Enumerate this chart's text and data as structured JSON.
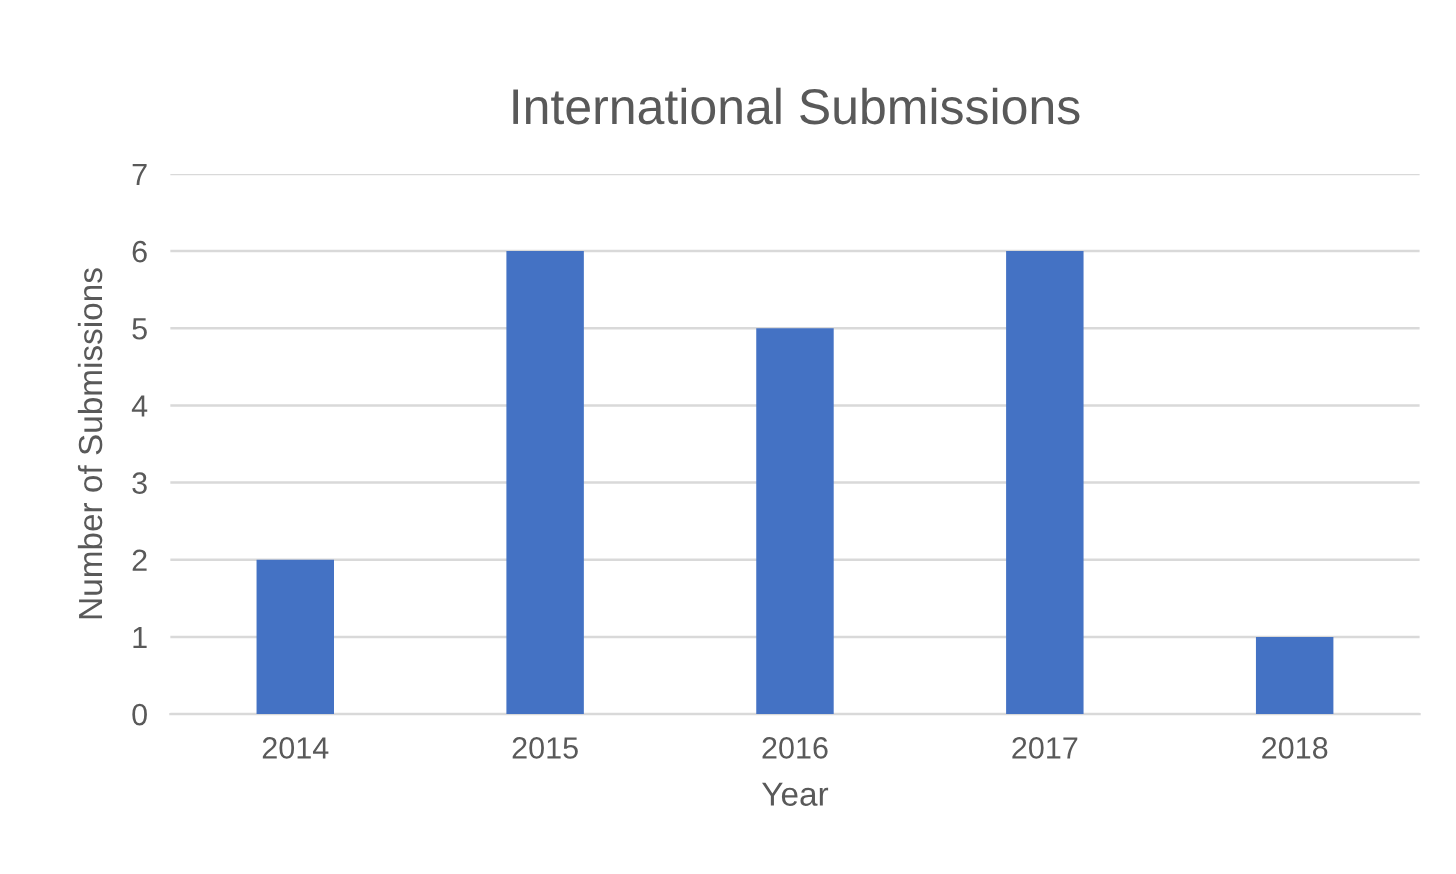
{
  "chart_data": {
    "type": "bar",
    "title": "International Submissions",
    "xlabel": "Year",
    "ylabel": "Number of Submissions",
    "categories": [
      "2014",
      "2015",
      "2016",
      "2017",
      "2018"
    ],
    "values": [
      2,
      6,
      5,
      6,
      1
    ],
    "color": "#4472c4",
    "ylim": [
      0,
      7
    ],
    "yticks": [
      0,
      1,
      2,
      3,
      4,
      5,
      6,
      7
    ],
    "grid": "y"
  }
}
